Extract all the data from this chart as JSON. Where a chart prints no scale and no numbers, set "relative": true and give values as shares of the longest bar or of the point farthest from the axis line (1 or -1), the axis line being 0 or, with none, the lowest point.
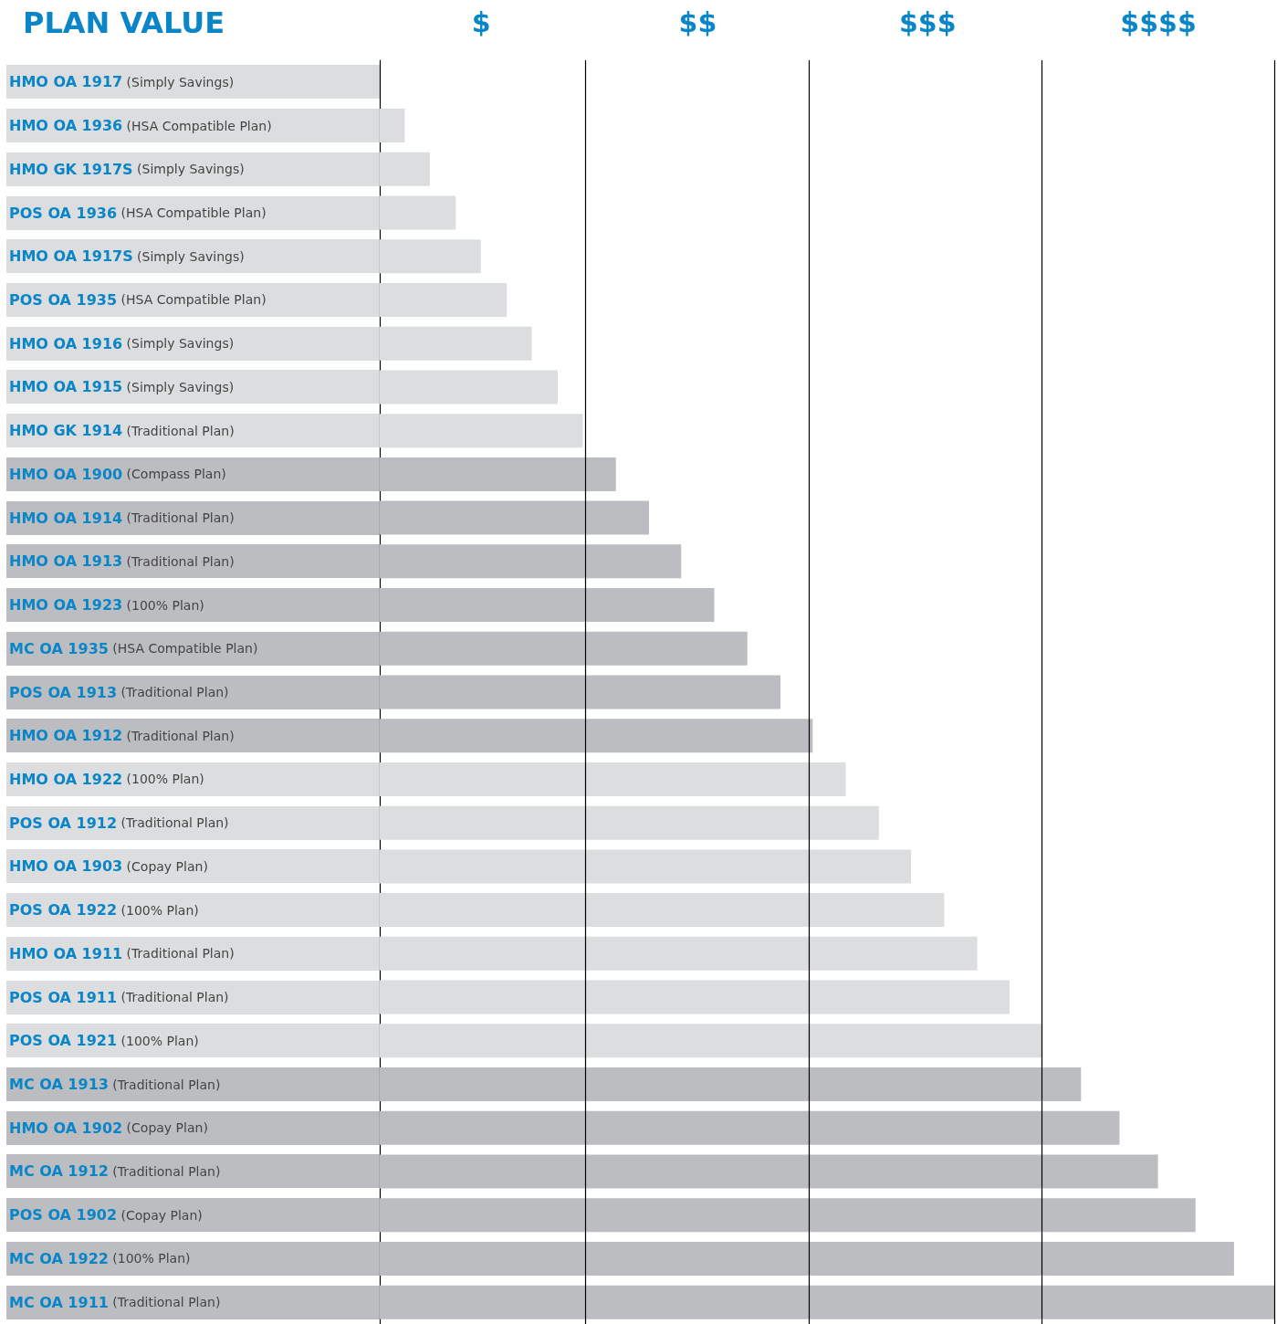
{
  "chart_data": {
    "type": "bar",
    "orientation": "horizontal",
    "relative": true,
    "title": "PLAN VALUE",
    "categories": [
      "HMO OA 1917 (Simply Savings)",
      "HMO OA 1936 (HSA Compatible Plan)",
      "HMO GK 1917S (Simply Savings)",
      "POS OA 1936 (HSA Compatible Plan)",
      "HMO OA 1917S (Simply Savings)",
      "POS OA 1935 (HSA Compatible Plan)",
      "HMO OA 1916 (Simply Savings)",
      "HMO OA 1915 (Simply Savings)",
      "HMO GK 1914 (Traditional Plan)",
      "HMO OA 1900 (Compass Plan)",
      "HMO OA 1914 (Traditional Plan)",
      "HMO OA 1913 (Traditional Plan)",
      "HMO OA 1923 (100% Plan)",
      "MC OA 1935 (HSA Compatible Plan)",
      "POS OA 1913 (Traditional Plan)",
      "HMO OA 1912 (Traditional Plan)",
      "HMO OA 1922 (100% Plan)",
      "POS OA 1912 (Traditional Plan)",
      "HMO OA 1903 (Copay Plan)",
      "POS OA 1922 (100% Plan)",
      "HMO OA 1911 (Traditional Plan)",
      "POS OA 1911 (Traditional Plan)",
      "POS OA 1921 (100% Plan)",
      "MC OA 1913 (Traditional Plan)",
      "HMO OA 1902 (Copay Plan)",
      "MC OA 1912 (Traditional Plan)",
      "POS OA 1902 (Copay Plan)",
      "MC OA 1922 (100% Plan)",
      "MC OA 1911 (Traditional Plan)"
    ],
    "values": [
      0,
      0.028,
      0.056,
      0.085,
      0.113,
      0.142,
      0.17,
      0.199,
      0.227,
      0.264,
      0.301,
      0.337,
      0.374,
      0.411,
      0.448,
      0.484,
      0.521,
      0.558,
      0.594,
      0.631,
      0.668,
      0.704,
      0.741,
      0.784,
      0.827,
      0.87,
      0.912,
      0.955,
      1
    ],
    "colors": [
      "#dcdddf",
      "#dcdddf",
      "#dcdddf",
      "#dcdddf",
      "#dcdddf",
      "#dcdddf",
      "#dcdddf",
      "#dcdddf",
      "#dcdddf",
      "#bcbdc0",
      "#bcbdc0",
      "#bcbdc0",
      "#bcbdc0",
      "#bcbdc0",
      "#bcbdc0",
      "#bcbdc0",
      "#dcdddf",
      "#dcdddf",
      "#dcdddf",
      "#dcdddf",
      "#dcdddf",
      "#dcdddf",
      "#dcdddf",
      "#bcbdc0",
      "#bcbdc0",
      "#bcbdc0",
      "#bcbdc0",
      "#bcbdc0",
      "#bcbdc0"
    ],
    "annotations": [
      "$",
      "$$",
      "$$$",
      "$$$$"
    ],
    "ref_lines": [
      {
        "axis": "x",
        "value": 0.227,
        "color": "#000000"
      },
      {
        "axis": "x",
        "value": 0.484,
        "color": "#000000"
      },
      {
        "axis": "x",
        "value": 0.741,
        "color": "#000000"
      },
      {
        "axis": "x",
        "value": 1,
        "color": "#000000"
      }
    ]
  }
}
